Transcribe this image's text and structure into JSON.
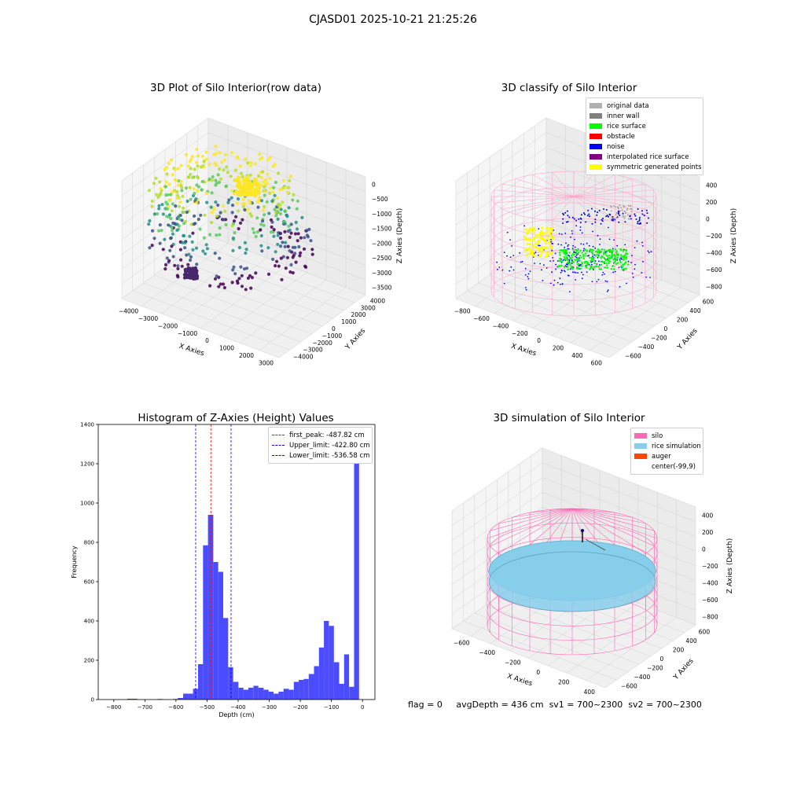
{
  "suptitle": "CJASD01 2025-10-21 21:25:26",
  "panels": {
    "raw": {
      "title": "3D Plot of Silo Interior(row data)",
      "xlabel": "X Axies",
      "ylabel": "Y Axies",
      "zlabel": "Z Axies (Depth)",
      "xticks": [
        "−4000",
        "−3000",
        "−2000",
        "−1000",
        "0",
        "1000",
        "2000",
        "3000"
      ],
      "yticks": [
        "4000",
        "3000",
        "2000",
        "1000",
        "0",
        "−1000",
        "−2000",
        "−3000",
        "−4000"
      ],
      "zticks": [
        "0",
        "−500",
        "−1000",
        "−1500",
        "−2000",
        "−2500",
        "−3000",
        "−3500"
      ]
    },
    "classify": {
      "title": "3D classify of Silo Interior",
      "xlabel": "X Axies",
      "ylabel": "Y Axies",
      "zlabel": "Z Axies (Depth)",
      "xticks": [
        "−800",
        "−600",
        "−400",
        "−200",
        "0",
        "200",
        "400",
        "600"
      ],
      "yticks": [
        "600",
        "400",
        "200",
        "0",
        "−200",
        "−400",
        "−600"
      ],
      "zticks": [
        "400",
        "200",
        "0",
        "−200",
        "−400",
        "−600",
        "−800"
      ],
      "legend": [
        {
          "label": "original data",
          "color": "#b0b0b0"
        },
        {
          "label": "inner wall",
          "color": "#808080"
        },
        {
          "label": "rice surface",
          "color": "#00ff00"
        },
        {
          "label": "obstacle",
          "color": "#ff0000"
        },
        {
          "label": "noise",
          "color": "#0000ff"
        },
        {
          "label": "interpolated rice surface",
          "color": "#800080"
        },
        {
          "label": "symmetric generated points",
          "color": "#ffff00"
        }
      ]
    },
    "histogram": {
      "title": "Histogram of Z-Axies (Height) Values",
      "legend": [
        {
          "label": "first_peak: -487.82 cm",
          "color": "#ff0000"
        },
        {
          "label": "Upper_limit: -422.80 cm",
          "color": "#0000ff"
        },
        {
          "label": "Lower_limit: -536.58 cm",
          "color": "#0000ff"
        }
      ]
    },
    "simulation": {
      "title": "3D simulation of Silo Interior",
      "xlabel": "X Axies",
      "ylabel": "Y Axies",
      "zlabel": "Z Axies (Depth)",
      "xticks": [
        "−600",
        "−400",
        "−200",
        "0",
        "200",
        "400"
      ],
      "yticks": [
        "600",
        "400",
        "200",
        "0",
        "−200",
        "−400",
        "−600"
      ],
      "zticks": [
        "400",
        "200",
        "0",
        "−200",
        "−400",
        "−600",
        "−800"
      ],
      "legend": [
        {
          "label": "silo",
          "color": "#ff69b4"
        },
        {
          "label": "rice simulation",
          "color": "#87ceeb"
        },
        {
          "label": "auger",
          "color": "#ff4500"
        },
        {
          "label": "center(-99,9)",
          "color": ""
        }
      ]
    }
  },
  "status": {
    "flag": "flag = 0",
    "avg": "avgDepth = 436 cm",
    "sv1": "sv1 = 700~2300",
    "sv2": "sv2 = 700~2300"
  },
  "chart_data": {
    "type": "bar",
    "title": "Histogram of Z-Axies (Height) Values",
    "xlabel": "Depth (cm)",
    "ylabel": "Frequency",
    "xlim": [
      -850,
      40
    ],
    "ylim": [
      0,
      1400
    ],
    "xticks": [
      -800,
      -700,
      -600,
      -500,
      -400,
      -300,
      -200,
      -100,
      0
    ],
    "yticks": [
      0,
      200,
      400,
      600,
      800,
      1000,
      1200,
      1400
    ],
    "bar_color": "#0000ff",
    "bins": [
      {
        "x0": -757,
        "x1": -725,
        "value": 4
      },
      {
        "x0": -659,
        "x1": -643,
        "value": 3
      },
      {
        "x0": -610,
        "x1": -594,
        "value": 3
      },
      {
        "x0": -594,
        "x1": -577,
        "value": 8
      },
      {
        "x0": -577,
        "x1": -561,
        "value": 30
      },
      {
        "x0": -561,
        "x1": -545,
        "value": 30
      },
      {
        "x0": -545,
        "x1": -529,
        "value": 55
      },
      {
        "x0": -529,
        "x1": -513,
        "value": 180
      },
      {
        "x0": -513,
        "x1": -497,
        "value": 785
      },
      {
        "x0": -497,
        "x1": -480,
        "value": 940
      },
      {
        "x0": -480,
        "x1": -464,
        "value": 700
      },
      {
        "x0": -464,
        "x1": -448,
        "value": 650
      },
      {
        "x0": -448,
        "x1": -432,
        "value": 415
      },
      {
        "x0": -432,
        "x1": -416,
        "value": 165
      },
      {
        "x0": -416,
        "x1": -399,
        "value": 90
      },
      {
        "x0": -399,
        "x1": -383,
        "value": 60
      },
      {
        "x0": -383,
        "x1": -367,
        "value": 50
      },
      {
        "x0": -367,
        "x1": -351,
        "value": 60
      },
      {
        "x0": -351,
        "x1": -335,
        "value": 70
      },
      {
        "x0": -335,
        "x1": -318,
        "value": 60
      },
      {
        "x0": -318,
        "x1": -302,
        "value": 50
      },
      {
        "x0": -302,
        "x1": -286,
        "value": 40
      },
      {
        "x0": -286,
        "x1": -270,
        "value": 30
      },
      {
        "x0": -270,
        "x1": -254,
        "value": 40
      },
      {
        "x0": -254,
        "x1": -237,
        "value": 55
      },
      {
        "x0": -237,
        "x1": -221,
        "value": 50
      },
      {
        "x0": -221,
        "x1": -205,
        "value": 90
      },
      {
        "x0": -205,
        "x1": -189,
        "value": 100
      },
      {
        "x0": -189,
        "x1": -173,
        "value": 105
      },
      {
        "x0": -173,
        "x1": -156,
        "value": 130
      },
      {
        "x0": -156,
        "x1": -140,
        "value": 170
      },
      {
        "x0": -140,
        "x1": -124,
        "value": 265
      },
      {
        "x0": -124,
        "x1": -108,
        "value": 400
      },
      {
        "x0": -108,
        "x1": -92,
        "value": 375
      },
      {
        "x0": -92,
        "x1": -75,
        "value": 190
      },
      {
        "x0": -75,
        "x1": -59,
        "value": 80
      },
      {
        "x0": -59,
        "x1": -43,
        "value": 230
      },
      {
        "x0": -43,
        "x1": -27,
        "value": 65
      },
      {
        "x0": -27,
        "x1": -11,
        "value": 1310
      }
    ],
    "vlines": [
      {
        "name": "first_peak",
        "x": -487.82,
        "color": "#ff0000"
      },
      {
        "name": "Upper_limit",
        "x": -422.8,
        "color": "#0000ff"
      },
      {
        "name": "Lower_limit",
        "x": -536.58,
        "color": "#0000ff"
      }
    ]
  }
}
